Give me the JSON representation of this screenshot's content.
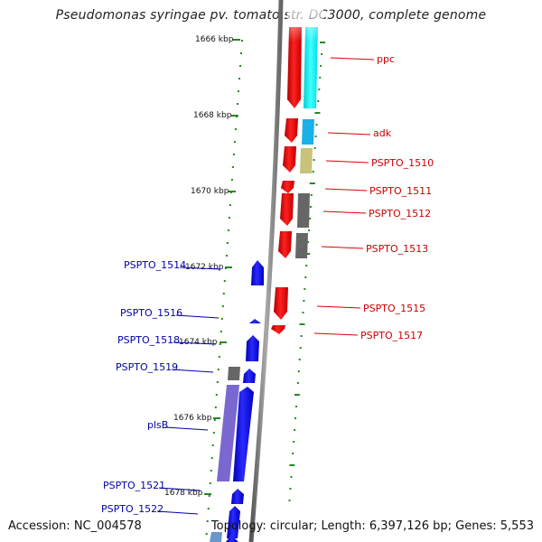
{
  "title": "Pseudomonas syringae pv. tomato str. DC3000, complete genome",
  "footer": {
    "accession": "Accession: NC_004578",
    "stats": "Topology: circular; Length: 6,397,126 bp; Genes: 5,553"
  },
  "colors": {
    "forward": "#ff0000",
    "reverse": "#0000ff",
    "forward_label": "#cc0000",
    "reverse_label": "#0000aa",
    "tick": "#228b22",
    "cyan": "#00ffff",
    "olive": "#c8c27a",
    "gray": "#666666",
    "purple": "#7a68d0",
    "steel": "#6a98c8"
  },
  "ruler": [
    {
      "label": "1666 kbp"
    },
    {
      "label": "1668 kbp"
    },
    {
      "label": "1670 kbp"
    },
    {
      "label": "1672 kbp"
    },
    {
      "label": "1674 kbp"
    },
    {
      "label": "1676 kbp"
    },
    {
      "label": "1678 kbp"
    }
  ],
  "forward_labels": [
    "ppc",
    "adk",
    "PSPTO_1510",
    "PSPTO_1511",
    "PSPTO_1512",
    "PSPTO_1513",
    "PSPTO_1515",
    "PSPTO_1517"
  ],
  "reverse_labels": [
    "PSPTO_1514",
    "PSPTO_1516",
    "PSPTO_1518",
    "PSPTO_1519",
    "plsB",
    "PSPTO_1521",
    "PSPTO_1522"
  ]
}
